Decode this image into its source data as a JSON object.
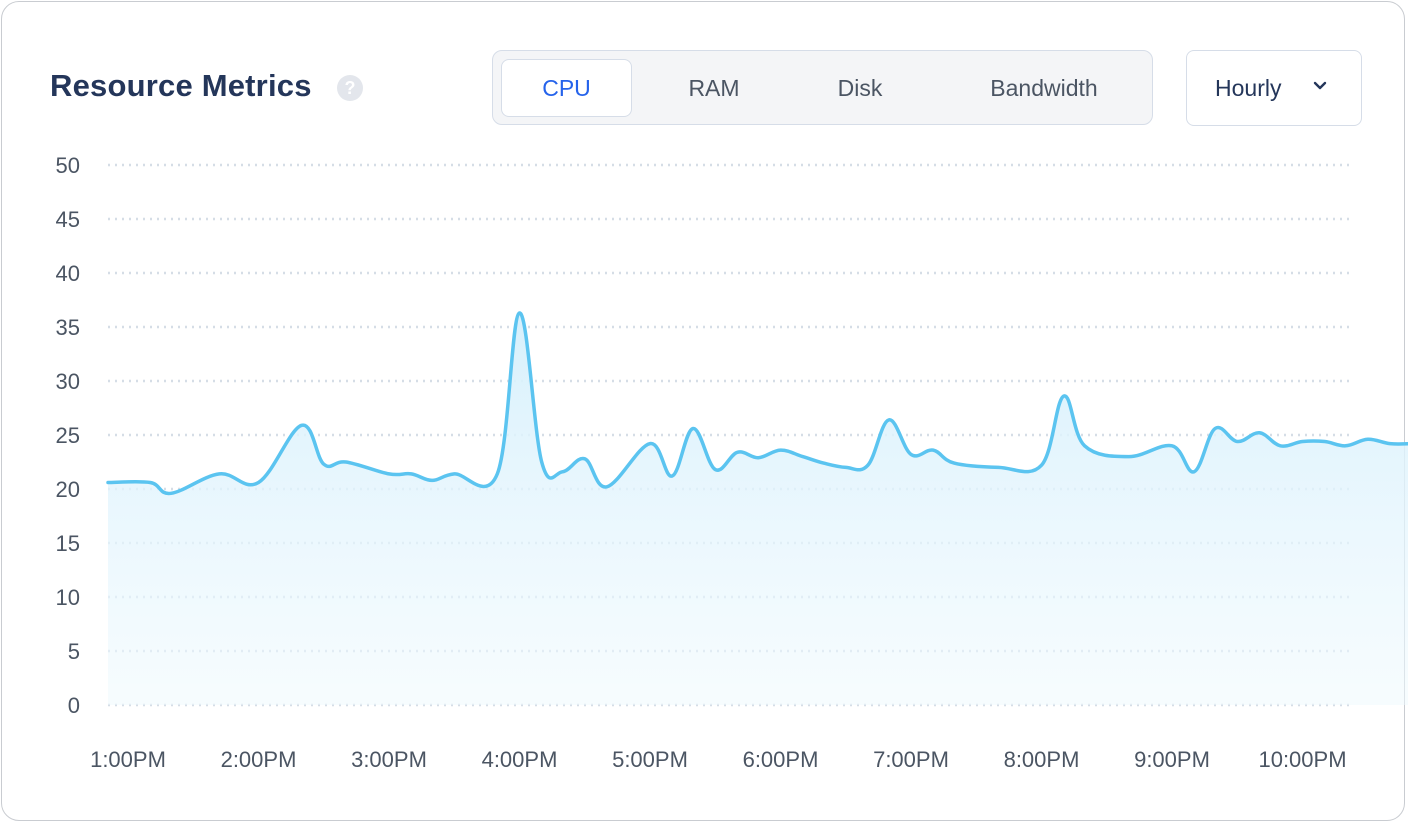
{
  "header": {
    "title": "Resource Metrics",
    "help_icon": "?"
  },
  "tabs": [
    {
      "label": "CPU",
      "active": true
    },
    {
      "label": "RAM",
      "active": false
    },
    {
      "label": "Disk",
      "active": false
    },
    {
      "label": "Bandwidth",
      "active": false
    }
  ],
  "interval_select": {
    "value": "Hourly",
    "icon": "chevron-down-icon"
  },
  "colors": {
    "line": "#5bc4f0",
    "fill": "#e6f6fd",
    "accent": "#2563eb",
    "title": "#24365a",
    "grid": "#d5dde6"
  },
  "chart_data": {
    "type": "area",
    "title": "",
    "xlabel": "",
    "ylabel": "",
    "ylim": [
      0,
      50
    ],
    "yticks": [
      "0",
      "5",
      "10",
      "15",
      "20",
      "25",
      "30",
      "35",
      "40",
      "45",
      "50"
    ],
    "xticks": [
      "1:00PM",
      "2:00PM",
      "3:00PM",
      "4:00PM",
      "5:00PM",
      "6:00PM",
      "7:00PM",
      "8:00PM",
      "9:00PM",
      "10:00PM"
    ],
    "grid": true,
    "series": [
      {
        "x": [
          0.0,
          0.17,
          0.33,
          0.7,
          1.0,
          1.33,
          1.5,
          1.67,
          2.0,
          2.17,
          2.33,
          2.5,
          2.83,
          3.0,
          3.17,
          3.33,
          3.5,
          3.67,
          4.0,
          4.17,
          4.33,
          4.5,
          4.67,
          4.83,
          5.0,
          5.17,
          5.33,
          5.5,
          5.67,
          5.83,
          6.0,
          6.17,
          6.33,
          6.67,
          7.0,
          7.17,
          7.33,
          7.67,
          8.0,
          8.17,
          8.33,
          8.5,
          8.67,
          8.83,
          9.0,
          9.17,
          9.33,
          9.5,
          9.67,
          9.83,
          10.0,
          10.17,
          10.33,
          10.55
        ],
        "values": [
          20.6,
          20.6,
          19.6,
          21.4,
          20.6,
          25.9,
          22.3,
          22.5,
          21.4,
          21.4,
          20.8,
          21.4,
          21.4,
          36.3,
          22.5,
          21.6,
          22.8,
          20.2,
          24.2,
          21.2,
          25.6,
          21.8,
          23.4,
          22.9,
          23.6,
          23.0,
          22.4,
          22.0,
          22.2,
          26.4,
          23.2,
          23.6,
          22.4,
          22.0,
          22.2,
          28.6,
          24.0,
          23.0,
          24.0,
          21.6,
          25.6,
          24.4,
          25.2,
          24.0,
          24.4,
          24.4,
          24.0,
          24.6,
          24.2,
          24.2,
          24.4,
          24.4,
          24.4,
          24.7
        ]
      }
    ]
  }
}
